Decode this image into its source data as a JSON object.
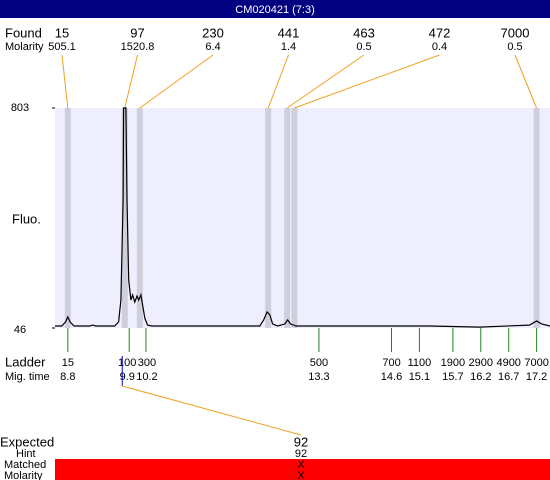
{
  "chart_data": {
    "type": "line",
    "title": "CM020421 (7:3)",
    "y_label": "Fluo.",
    "x": [
      8.57,
      8.69,
      8.76,
      8.8,
      8.84,
      8.91,
      9.19,
      9.25,
      9.3,
      9.64,
      9.71,
      9.75,
      9.79,
      9.8,
      9.82,
      9.84,
      9.86,
      9.89,
      9.93,
      9.96,
      10.0,
      10.04,
      10.07,
      10.11,
      10.14,
      10.18,
      10.23,
      10.31,
      12.24,
      12.31,
      12.37,
      12.42,
      12.47,
      12.56,
      12.69,
      12.74,
      12.79,
      12.89,
      14.75,
      15.28,
      16.18,
      17.07,
      17.2,
      17.29,
      17.44
    ],
    "values": [
      53,
      53,
      67,
      84,
      67,
      53,
      53,
      56,
      53,
      53,
      67,
      142,
      486,
      803,
      803,
      803,
      486,
      211,
      142,
      160,
      135,
      156,
      142,
      160,
      125,
      80,
      56,
      53,
      53,
      74,
      101,
      91,
      60,
      53,
      60,
      74,
      60,
      53,
      53,
      53,
      49,
      56,
      70,
      60,
      53
    ],
    "color": "#000000",
    "background": "#eeeeff",
    "xlim": [
      8.57,
      17.44
    ],
    "ylim": [
      46,
      803
    ],
    "yticks": [
      46,
      803
    ]
  },
  "found": {
    "label": "Found",
    "molarity_label": "Molarity",
    "band_color": "#cfcfdc",
    "line_color": "#f0a020",
    "peaks": [
      {
        "size": 15,
        "molarity": 505.1,
        "time": 8.8
      },
      {
        "size": 97,
        "molarity": 1520.8,
        "time": 9.82
      },
      {
        "size": 230,
        "molarity": 6.4,
        "time": 10.09
      },
      {
        "size": 441,
        "molarity": 1.4,
        "time": 12.39
      },
      {
        "size": 463,
        "molarity": 0.5,
        "time": 12.73
      },
      {
        "size": 472,
        "molarity": 0.4,
        "time": 12.86
      },
      {
        "size": 7000,
        "molarity": 0.5,
        "time": 17.2
      }
    ]
  },
  "ladder": {
    "label": "Ladder",
    "time_label": "Mig. time",
    "color": "#208020",
    "peaks": [
      {
        "size": 15,
        "time": 8.8
      },
      {
        "size": 100,
        "time": 9.9
      },
      {
        "size": 300,
        "time": 10.2
      },
      {
        "size": 500,
        "time": 13.3
      },
      {
        "size": 700,
        "time": 14.6
      },
      {
        "size": 1100,
        "time": 15.1
      },
      {
        "size": 1900,
        "time": 15.7
      },
      {
        "size": 2900,
        "time": 16.2
      },
      {
        "size": 4900,
        "time": 16.7
      },
      {
        "size": 7000,
        "time": 17.2
      }
    ]
  },
  "expected": {
    "label": "Expected",
    "value": 92,
    "hint_label": "Hint",
    "hint": 92,
    "matched_label": "Matched",
    "matched": "X",
    "molarity_label": "Molarity",
    "molarity": "X"
  }
}
